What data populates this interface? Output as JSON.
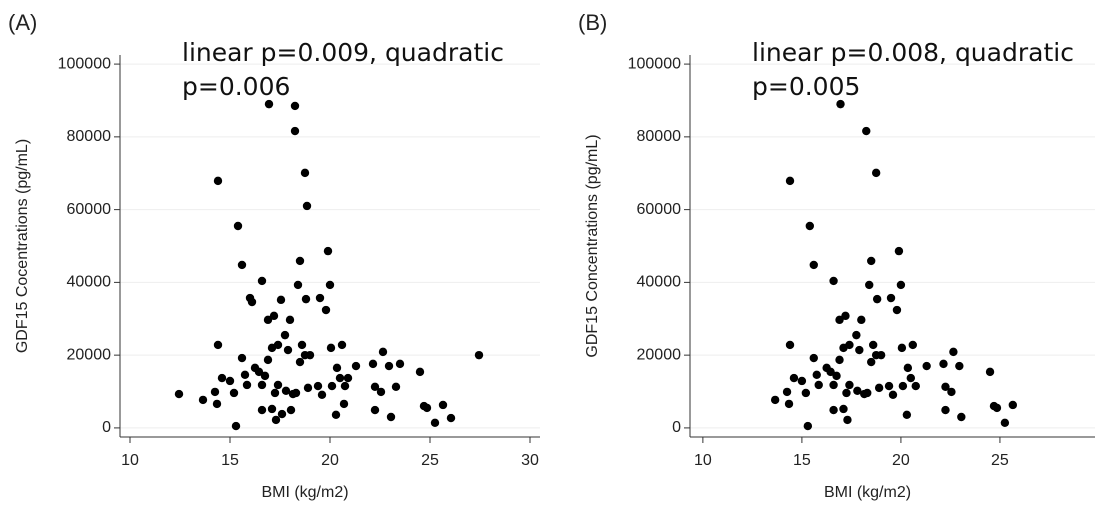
{
  "chart_data": [
    {
      "type": "scatter",
      "panel": "(A)",
      "annotation": "linear p=0.009, quadratic p=0.006",
      "x_label": "BMI (kg/m2)",
      "y_label": "GDF15 Cocentrations (pg/mL)",
      "color": "#000000",
      "grid": true,
      "xlim": [
        9.5,
        30.5
      ],
      "ylim": [
        -2500,
        102500
      ],
      "xticks": [
        10,
        15,
        20,
        25,
        30
      ],
      "yticks": [
        0,
        20000,
        40000,
        60000,
        80000,
        100000
      ],
      "x": [
        12.45,
        13.65,
        14.25,
        14.35,
        14.4,
        14.4,
        14.6,
        15,
        15.2,
        15.3,
        15.4,
        15.6,
        15.6,
        15.75,
        15.85,
        16,
        16.1,
        16.25,
        16.45,
        16.6,
        16.6,
        16.6,
        16.75,
        16.9,
        16.9,
        16.95,
        17.1,
        17.1,
        17.2,
        17.25,
        17.3,
        17.4,
        17.4,
        17.55,
        17.6,
        17.75,
        17.8,
        17.9,
        18,
        18.05,
        18.15,
        18.25,
        18.25,
        18.3,
        18.4,
        18.5,
        18.5,
        18.6,
        18.75,
        18.75,
        18.85,
        18.8,
        18.9,
        19,
        19.4,
        19.5,
        19.6,
        19.8,
        19.9,
        20,
        20.05,
        20.1,
        20.3,
        20.35,
        20.5,
        20.6,
        20.7,
        20.75,
        20.9,
        21.3,
        22.15,
        22.25,
        22.25,
        22.55,
        22.65,
        22.95,
        23.05,
        23.3,
        23.5,
        24.5,
        24.7,
        24.85,
        25.25,
        25.65,
        26.05,
        27.45
      ],
      "values": [
        9300,
        7700,
        9900,
        6600,
        67900,
        22800,
        13700,
        12900,
        9600,
        500,
        55500,
        44800,
        19200,
        14600,
        11800,
        35700,
        34600,
        16500,
        15400,
        40400,
        11800,
        4900,
        14300,
        29700,
        18700,
        89000,
        5200,
        22000,
        30800,
        9600,
        2200,
        22800,
        11800,
        35200,
        3800,
        25500,
        10200,
        21400,
        29700,
        4900,
        9300,
        88500,
        81600,
        9600,
        39300,
        45900,
        18100,
        22800,
        20000,
        70100,
        61000,
        35400,
        11000,
        20000,
        11500,
        35700,
        9100,
        32400,
        48600,
        39300,
        22000,
        11500,
        3600,
        16500,
        13700,
        22800,
        6600,
        11500,
        13700,
        17000,
        17600,
        11300,
        4900,
        9900,
        20900,
        17000,
        3000,
        11300,
        17600,
        15400,
        6000,
        5500,
        1400,
        6300,
        2700,
        20000
      ]
    },
    {
      "type": "scatter",
      "panel": "(B)",
      "annotation": "linear p=0.008, quadratic p=0.005",
      "x_label": "BMI (kg/m2)",
      "y_label": "GDF15 Concentrations (pg/mL)",
      "color": "#000000",
      "grid": true,
      "xlim": [
        9.35,
        29.8
      ],
      "ylim": [
        -2500,
        102500
      ],
      "xticks": [
        10,
        15,
        20,
        25
      ],
      "yticks": [
        0,
        20000,
        40000,
        60000,
        80000,
        100000
      ],
      "x": [
        13.65,
        14.25,
        14.35,
        14.4,
        14.4,
        14.6,
        15,
        15.2,
        15.3,
        15.4,
        15.6,
        15.6,
        15.75,
        15.85,
        16.25,
        16.45,
        16.6,
        16.6,
        16.6,
        16.75,
        16.9,
        16.9,
        16.95,
        17.1,
        17.1,
        17.2,
        17.25,
        17.3,
        17.4,
        17.4,
        17.75,
        17.8,
        17.9,
        18,
        18.15,
        18.25,
        18.3,
        18.4,
        18.5,
        18.5,
        18.6,
        18.75,
        18.75,
        18.8,
        18.9,
        19,
        19.4,
        19.5,
        19.6,
        19.8,
        19.9,
        20,
        20.05,
        20.1,
        20.3,
        20.35,
        20.5,
        20.6,
        20.75,
        21.3,
        22.15,
        22.25,
        22.25,
        22.55,
        22.65,
        22.95,
        23.05,
        24.5,
        24.7,
        24.85,
        25.25,
        25.65
      ],
      "values": [
        7700,
        9900,
        6600,
        67900,
        22800,
        13700,
        12900,
        9600,
        500,
        55500,
        44800,
        19200,
        14600,
        11800,
        16500,
        15400,
        40400,
        11800,
        4900,
        14300,
        29700,
        18700,
        89000,
        5200,
        22000,
        30800,
        9600,
        2200,
        22800,
        11800,
        25500,
        10200,
        21400,
        29700,
        9300,
        81600,
        9600,
        39300,
        45900,
        18100,
        22800,
        20000,
        70100,
        35400,
        11000,
        20000,
        11500,
        35700,
        9100,
        32400,
        48600,
        39300,
        22000,
        11500,
        3600,
        16500,
        13700,
        22800,
        11500,
        17000,
        17600,
        11300,
        4900,
        9900,
        20900,
        17000,
        3000,
        15400,
        6000,
        5500,
        1400,
        6300
      ]
    }
  ]
}
